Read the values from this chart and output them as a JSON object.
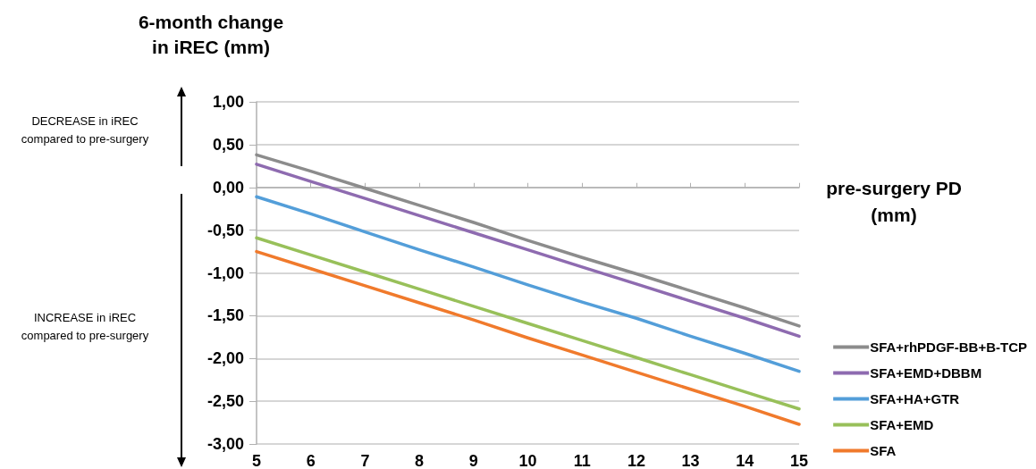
{
  "chart_data": {
    "type": "line",
    "xlabel": "pre-surgery PD\n(mm)",
    "ylabel": "6-month change\nin iREC (mm)",
    "x": [
      5,
      6,
      7,
      8,
      9,
      10,
      11,
      12,
      13,
      14,
      15
    ],
    "xlim": [
      5,
      15
    ],
    "xticks": [
      5,
      6,
      7,
      8,
      9,
      10,
      11,
      12,
      13,
      14,
      15
    ],
    "ylim": [
      -3,
      1
    ],
    "yticks": [
      {
        "value": -3,
        "label": "-3,00"
      },
      {
        "value": -2.5,
        "label": "-2,50"
      },
      {
        "value": -2,
        "label": "-2,00"
      },
      {
        "value": -1.5,
        "label": "-1,50"
      },
      {
        "value": -1,
        "label": "-1,00"
      },
      {
        "value": -0.5,
        "label": "-0,50"
      },
      {
        "value": 0,
        "label": "0,00"
      },
      {
        "value": 0.5,
        "label": "0,50"
      },
      {
        "value": 1,
        "label": "1,00"
      }
    ],
    "series": [
      {
        "name": "SFA+rhPDGF-BB+B-TCP",
        "color": "#8c8c8c",
        "values": [
          0.38,
          0.19,
          -0.01,
          -0.21,
          -0.41,
          -0.62,
          -0.82,
          -1.01,
          -1.21,
          -1.41,
          -1.62
        ]
      },
      {
        "name": "SFA+EMD+DBBM",
        "color": "#8e6bb0",
        "values": [
          0.27,
          0.07,
          -0.13,
          -0.33,
          -0.53,
          -0.73,
          -0.93,
          -1.13,
          -1.33,
          -1.53,
          -1.74
        ]
      },
      {
        "name": "SFA+HA+GTR",
        "color": "#539ed9",
        "values": [
          -0.11,
          -0.31,
          -0.52,
          -0.73,
          -0.93,
          -1.14,
          -1.34,
          -1.53,
          -1.74,
          -1.94,
          -2.15
        ]
      },
      {
        "name": "SFA+EMD",
        "color": "#98c05a",
        "values": [
          -0.59,
          -0.79,
          -0.99,
          -1.19,
          -1.39,
          -1.59,
          -1.79,
          -1.99,
          -2.19,
          -2.39,
          -2.59
        ]
      },
      {
        "name": "SFA",
        "color": "#f07a2c",
        "values": [
          -0.75,
          -0.95,
          -1.15,
          -1.35,
          -1.55,
          -1.76,
          -1.96,
          -2.16,
          -2.36,
          -2.56,
          -2.77
        ]
      }
    ],
    "annotations": [
      "DECREASE in iREC\ncompared to pre-surgery",
      "INCREASE in iREC\ncompared to pre-surgery"
    ],
    "grid": "y",
    "legend": "bottom right",
    "marker": "none",
    "line_style": "solid"
  }
}
